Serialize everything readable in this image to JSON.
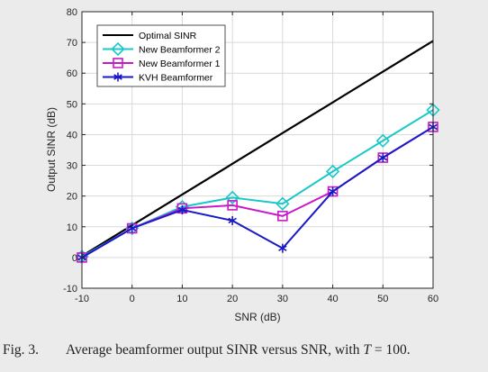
{
  "chart_data": {
    "type": "line",
    "xlabel": "SNR (dB)",
    "ylabel": "Output SINR (dB)",
    "xlim": [
      -10,
      60
    ],
    "ylim": [
      -10,
      80
    ],
    "x_ticks": [
      -10,
      0,
      10,
      20,
      30,
      40,
      50,
      60
    ],
    "y_ticks": [
      -10,
      0,
      10,
      20,
      30,
      40,
      50,
      60,
      70,
      80
    ],
    "grid": true,
    "legend_position": "top-left",
    "x": [
      -10,
      0,
      10,
      20,
      30,
      40,
      50,
      60
    ],
    "series": [
      {
        "name": "Optimal SINR",
        "color": "#000000",
        "marker": "none",
        "values": [
          0.5,
          10.5,
          20.5,
          30.5,
          40.5,
          50.5,
          60.5,
          70.5
        ]
      },
      {
        "name": "New Beamformer 2",
        "color": "#19c8c8",
        "marker": "diamond",
        "values": [
          0.3,
          9.5,
          16.5,
          19.5,
          17.5,
          28,
          38,
          48
        ]
      },
      {
        "name": "New Beamformer 1",
        "color": "#c819c8",
        "marker": "square",
        "values": [
          0,
          9.5,
          16,
          17,
          13.5,
          21.5,
          32.5,
          42.5
        ]
      },
      {
        "name": "KVH Beamformer",
        "color": "#1919c8",
        "marker": "asterisk",
        "values": [
          0,
          9.5,
          15.5,
          12,
          3,
          21.5,
          32.5,
          42.5
        ]
      }
    ]
  },
  "caption": {
    "label": "Fig. 3.",
    "text_before": "Average beamformer output SINR versus SNR, with ",
    "math_var": "T",
    "text_after": " = 100."
  }
}
